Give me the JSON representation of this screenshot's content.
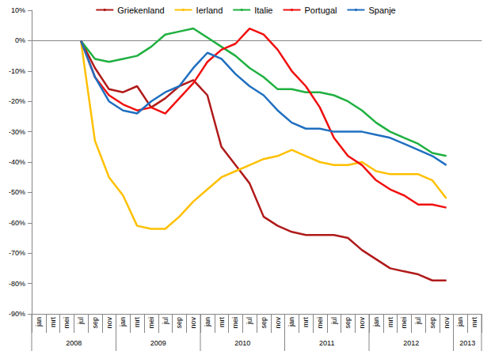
{
  "chart_data": {
    "type": "line",
    "categories": [
      [
        "jan",
        "2008"
      ],
      [
        "mrt",
        "2008"
      ],
      [
        "mei",
        "2008"
      ],
      [
        "jul",
        "2008"
      ],
      [
        "sep",
        "2008"
      ],
      [
        "nov",
        "2008"
      ],
      [
        "jan",
        "2009"
      ],
      [
        "mrt",
        "2009"
      ],
      [
        "mei",
        "2009"
      ],
      [
        "jul",
        "2009"
      ],
      [
        "sep",
        "2009"
      ],
      [
        "nov",
        "2009"
      ],
      [
        "jan",
        "2010"
      ],
      [
        "mrt",
        "2010"
      ],
      [
        "mei",
        "2010"
      ],
      [
        "jul",
        "2010"
      ],
      [
        "sep",
        "2010"
      ],
      [
        "nov",
        "2010"
      ],
      [
        "jan",
        "2011"
      ],
      [
        "mrt",
        "2011"
      ],
      [
        "mei",
        "2011"
      ],
      [
        "jul",
        "2011"
      ],
      [
        "sep",
        "2011"
      ],
      [
        "nov",
        "2011"
      ],
      [
        "jan",
        "2012"
      ],
      [
        "mrt",
        "2012"
      ],
      [
        "mei",
        "2012"
      ],
      [
        "jul",
        "2012"
      ],
      [
        "sep",
        "2012"
      ],
      [
        "nov",
        "2012"
      ],
      [
        "jan",
        "2013"
      ],
      [
        "mrt",
        "2013"
      ]
    ],
    "series": [
      {
        "name": "Griekenland",
        "color": "#B01A1A",
        "values": [
          null,
          null,
          null,
          0,
          -9,
          -16,
          -17,
          -15,
          -22,
          -19,
          -15,
          -13,
          -18,
          -35,
          -41,
          -47,
          -58,
          -61,
          -63,
          -64,
          -64,
          -64,
          -65,
          -69,
          -72,
          -75,
          -76,
          -77,
          -79,
          -79,
          null,
          null
        ]
      },
      {
        "name": "Ierland",
        "color": "#FFC000",
        "values": [
          null,
          null,
          null,
          0,
          -33,
          -45,
          -51,
          -61,
          -62,
          -62,
          -58,
          -53,
          -49,
          -45,
          -43,
          -41,
          -39,
          -38,
          -36,
          -38,
          -40,
          -41,
          -41,
          -40,
          -43,
          -44,
          -44,
          -44,
          -46,
          -52,
          null,
          null
        ]
      },
      {
        "name": "Italie",
        "color": "#1FB040",
        "values": [
          null,
          null,
          null,
          0,
          -6,
          -7,
          -6,
          -5,
          -2,
          2,
          3,
          4,
          1,
          -2,
          -5,
          -9,
          -12,
          -16,
          -16,
          -17,
          -17,
          -18,
          -20,
          -23,
          -27,
          -30,
          -32,
          -34,
          -37,
          -38,
          null,
          null
        ]
      },
      {
        "name": "Portugal",
        "color": "#F01010",
        "values": [
          null,
          null,
          null,
          0,
          -12,
          -18,
          -21,
          -23,
          -22,
          -24,
          -19,
          -14,
          -7,
          -3,
          -1,
          4,
          2,
          -3,
          -10,
          -15,
          -22,
          -32,
          -38,
          -41,
          -46,
          -49,
          -51,
          -54,
          -54,
          -55,
          null,
          null
        ]
      },
      {
        "name": "Spanje",
        "color": "#1F6FC0",
        "values": [
          null,
          null,
          null,
          0,
          -12,
          -20,
          -23,
          -24,
          -20,
          -17,
          -15,
          -9,
          -4,
          -6,
          -11,
          -15,
          -18,
          -23,
          -27,
          -29,
          -29,
          -30,
          -30,
          -30,
          -31,
          -32,
          -34,
          -36,
          -38,
          -41,
          null,
          null
        ]
      }
    ],
    "ylim": [
      -90,
      10
    ],
    "yticks": [
      {
        "value": -90,
        "label": "-90%"
      },
      {
        "value": -80,
        "label": "-80%"
      },
      {
        "value": -70,
        "label": "-70%"
      },
      {
        "value": -60,
        "label": "-60%"
      },
      {
        "value": -50,
        "label": "-50%"
      },
      {
        "value": -40,
        "label": "-40%"
      },
      {
        "value": -30,
        "label": "-30%"
      },
      {
        "value": -20,
        "label": "-20%"
      },
      {
        "value": -10,
        "label": "-10%"
      },
      {
        "value": 0,
        "label": "0%"
      },
      {
        "value": 10,
        "label": "10%"
      }
    ],
    "grid": false,
    "legend": "top",
    "marker": "none"
  }
}
